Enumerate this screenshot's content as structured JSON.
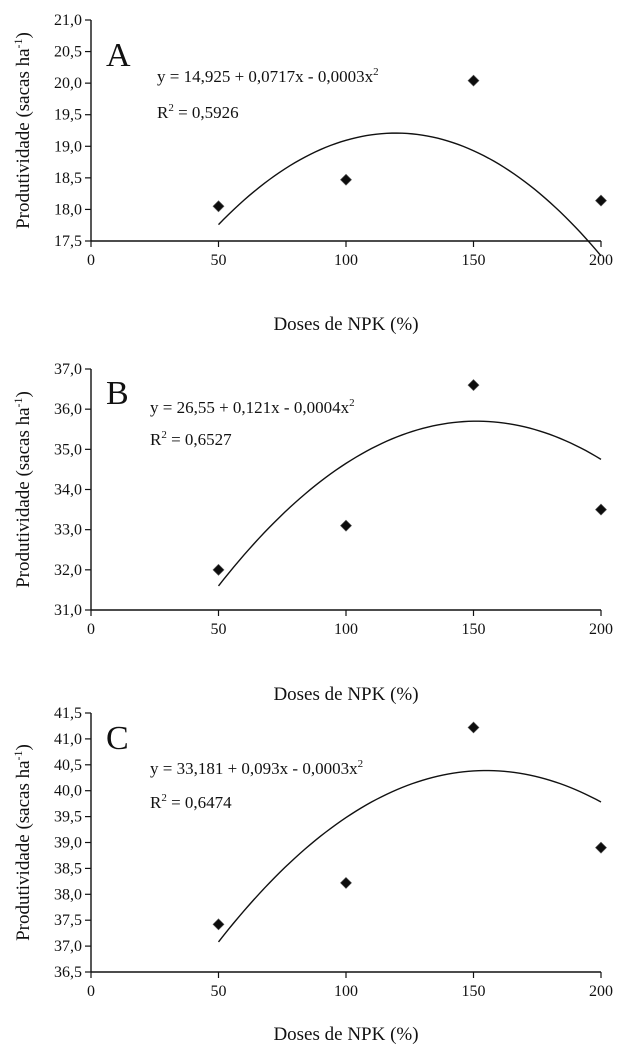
{
  "chart_data": [
    {
      "type": "scatter",
      "panel": "A",
      "xlabel": "Doses de NPK (%)",
      "ylabel": "Produtividade (sacas ha",
      "ylabel_sup": "-1",
      "ylabel_close": ")",
      "x": [
        50,
        100,
        150,
        200
      ],
      "y": [
        18.05,
        18.47,
        20.04,
        18.14
      ],
      "xlim": [
        0,
        200
      ],
      "ylim": [
        17.5,
        21.0
      ],
      "xticks": [
        0,
        50,
        100,
        150,
        200
      ],
      "xtick_labels": [
        "0",
        "50",
        "100",
        "150",
        "200"
      ],
      "yticks": [
        17.5,
        18.0,
        18.5,
        19.0,
        19.5,
        20.0,
        20.5,
        21.0
      ],
      "ytick_labels": [
        "17,5",
        "18,0",
        "18,5",
        "19,0",
        "19,5",
        "20,0",
        "20,5",
        "21,0"
      ],
      "fit": {
        "a": 14.925,
        "b": 0.0717,
        "c": -0.0003
      },
      "equation": "y = 14,925 + 0,0717x - 0,0003x",
      "equation_sup": "2",
      "r2_prefix": "R",
      "r2_sup": "2",
      "r2_suffix": " = 0,5926",
      "grid": false,
      "legend": "none"
    },
    {
      "type": "scatter",
      "panel": "B",
      "xlabel": "Doses de NPK (%)",
      "ylabel": "Produtividade (sacas ha",
      "ylabel_sup": "-1",
      "ylabel_close": ")",
      "x": [
        50,
        100,
        150,
        200
      ],
      "y": [
        32.0,
        33.1,
        36.6,
        33.5
      ],
      "xlim": [
        0,
        200
      ],
      "ylim": [
        31.0,
        37.0
      ],
      "xticks": [
        0,
        50,
        100,
        150,
        200
      ],
      "xtick_labels": [
        "0",
        "50",
        "100",
        "150",
        "200"
      ],
      "yticks": [
        31.0,
        32.0,
        33.0,
        34.0,
        35.0,
        36.0,
        37.0
      ],
      "ytick_labels": [
        "31,0",
        "32,0",
        "33,0",
        "34,0",
        "35,0",
        "36,0",
        "37,0"
      ],
      "fit": {
        "a": 26.55,
        "b": 0.121,
        "c": -0.0004
      },
      "equation": "y = 26,55 + 0,121x - 0,0004x",
      "equation_sup": "2",
      "r2_prefix": "R",
      "r2_sup": "2",
      "r2_suffix": " = 0,6527",
      "grid": false,
      "legend": "none"
    },
    {
      "type": "scatter",
      "panel": "C",
      "xlabel": "Doses de NPK (%)",
      "ylabel": "Produtividade (sacas ha",
      "ylabel_sup": "-1",
      "ylabel_close": ")",
      "x": [
        50,
        100,
        150,
        200
      ],
      "y": [
        37.42,
        38.22,
        41.22,
        38.9
      ],
      "xlim": [
        0,
        200
      ],
      "ylim": [
        36.5,
        41.5
      ],
      "xticks": [
        0,
        50,
        100,
        150,
        200
      ],
      "xtick_labels": [
        "0",
        "50",
        "100",
        "150",
        "200"
      ],
      "yticks": [
        36.5,
        37.0,
        37.5,
        38.0,
        38.5,
        39.0,
        39.5,
        40.0,
        40.5,
        41.0,
        41.5
      ],
      "ytick_labels": [
        "36,5",
        "37,0",
        "37,5",
        "38,0",
        "38,5",
        "39,0",
        "39,5",
        "40,0",
        "40,5",
        "41,0",
        "41,5"
      ],
      "fit": {
        "a": 33.181,
        "b": 0.093,
        "c": -0.0003
      },
      "equation": "y = 33,181 + 0,093x - 0,0003x",
      "equation_sup": "2",
      "r2_prefix": "R",
      "r2_sup": "2",
      "r2_suffix": " = 0,6474",
      "grid": false,
      "legend": "none"
    }
  ]
}
